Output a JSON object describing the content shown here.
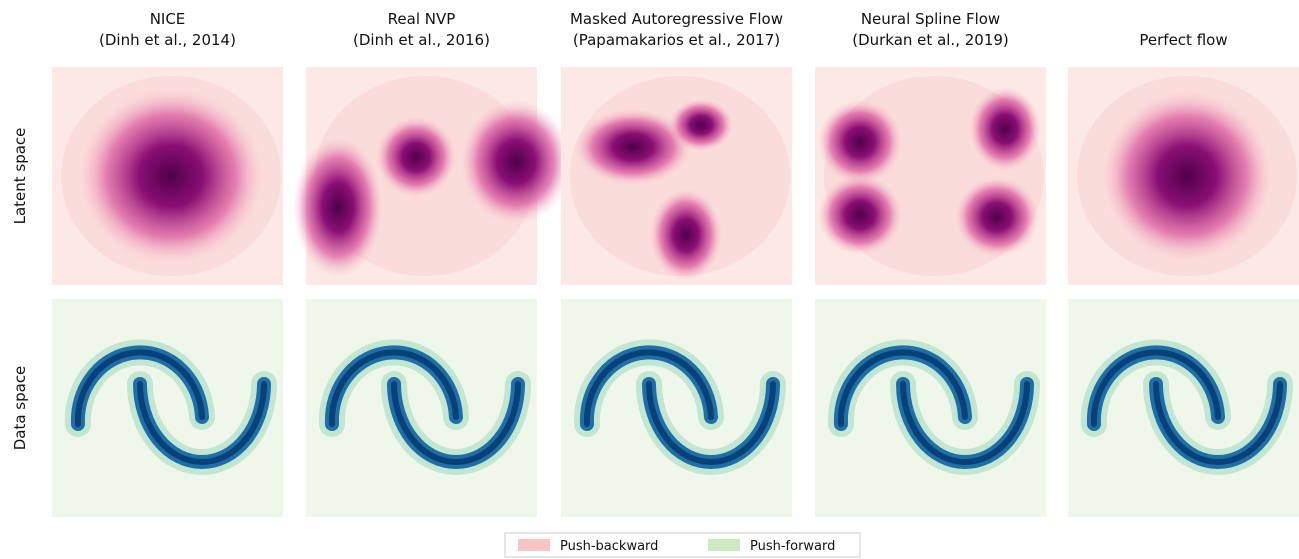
{
  "columns": [
    {
      "title": "NICE",
      "citation": "(Dinh et al., 2014)"
    },
    {
      "title": "Real NVP",
      "citation": "(Dinh et al., 2016)"
    },
    {
      "title": "Masked Autoregressive Flow",
      "citation": "(Papamakarios et al., 2017)"
    },
    {
      "title": "Neural Spline Flow",
      "citation": "(Durkan et al., 2019)"
    },
    {
      "title": "Perfect flow"
    }
  ],
  "rows": [
    "Latent space",
    "Data space"
  ],
  "legend": [
    {
      "label": "Push-backward",
      "color": "#f7c6c4"
    },
    {
      "label": "Push-forward",
      "color": "#cdeac3"
    }
  ]
}
